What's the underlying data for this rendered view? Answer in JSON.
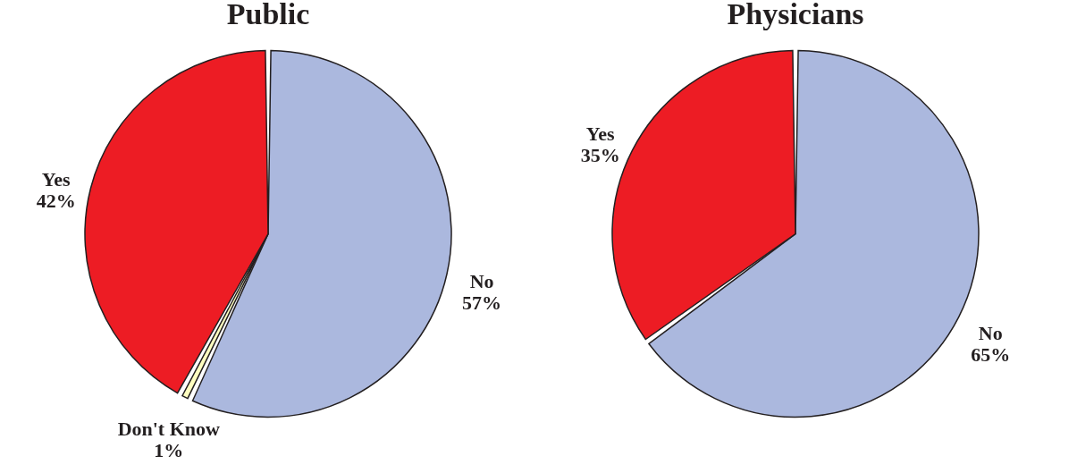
{
  "chart_data": [
    {
      "type": "pie",
      "title": "Public",
      "categories": [
        "No",
        "Don't Know",
        "Yes"
      ],
      "values": [
        57,
        1,
        42
      ],
      "value_labels": [
        "57%",
        "1%",
        "42%"
      ],
      "colors": [
        "#abb8de",
        "#ffffc0",
        "#ed1c24"
      ],
      "legend": false
    },
    {
      "type": "pie",
      "title": "Physicians",
      "categories": [
        "No",
        "Yes"
      ],
      "values": [
        65,
        35
      ],
      "value_labels": [
        "65%",
        "35%"
      ],
      "colors": [
        "#abb8de",
        "#ed1c24"
      ],
      "legend": false
    }
  ]
}
